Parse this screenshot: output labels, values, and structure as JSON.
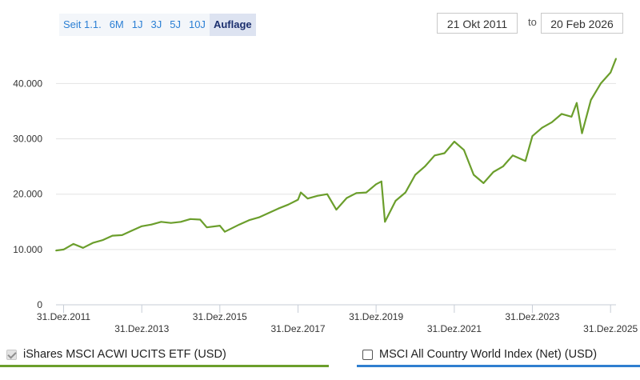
{
  "range_selector": {
    "buttons": [
      "Seit 1.1.",
      "6M",
      "1J",
      "3J",
      "5J",
      "10J",
      "Auflage"
    ],
    "active": "Auflage"
  },
  "date_range": {
    "from": "21 Okt 2011",
    "to_label": "to",
    "to": "20 Feb 2026"
  },
  "legend": {
    "items": [
      {
        "label": "iShares MSCI ACWI UCITS ETF (USD)",
        "checked": true,
        "color": "#6b9e2c"
      },
      {
        "label": "MSCI All Country World Index (Net) (USD)",
        "checked": false,
        "color": "#2f7fd0"
      }
    ]
  },
  "chart_data": {
    "type": "line",
    "ylim": [
      0,
      47000
    ],
    "yticks": [
      0,
      10000,
      20000,
      30000,
      40000
    ],
    "ytick_labels": [
      "0",
      "10.000",
      "20.000",
      "30.000",
      "40.000"
    ],
    "xlim": [
      "2011-10-21",
      "2026-02-20"
    ],
    "xticks": [
      "2011-12-31",
      "2013-12-31",
      "2015-12-31",
      "2017-12-31",
      "2019-12-31",
      "2021-12-31",
      "2023-12-31",
      "2025-12-31"
    ],
    "xtick_labels": [
      "31.Dez.2011",
      "31.Dez.2013",
      "31.Dez.2015",
      "31.Dez.2017",
      "31.Dez.2019",
      "31.Dez.2021",
      "31.Dez.2023",
      "31.Dez.2025"
    ],
    "grid": true,
    "series": [
      {
        "name": "iShares MSCI ACWI UCITS ETF (USD)",
        "color": "#6b9e2c",
        "x": [
          "2011-10-21",
          "2011-12-31",
          "2012-03-31",
          "2012-06-30",
          "2012-09-30",
          "2012-12-31",
          "2013-03-31",
          "2013-06-30",
          "2013-09-30",
          "2013-12-31",
          "2014-03-31",
          "2014-06-30",
          "2014-09-30",
          "2014-12-31",
          "2015-03-31",
          "2015-06-30",
          "2015-08-31",
          "2015-12-31",
          "2016-02-15",
          "2016-06-30",
          "2016-09-30",
          "2016-12-31",
          "2017-03-31",
          "2017-06-30",
          "2017-09-30",
          "2017-12-31",
          "2018-01-26",
          "2018-03-31",
          "2018-06-30",
          "2018-09-30",
          "2018-12-24",
          "2019-03-31",
          "2019-06-30",
          "2019-09-30",
          "2019-12-31",
          "2020-02-19",
          "2020-03-23",
          "2020-06-30",
          "2020-09-30",
          "2020-12-31",
          "2021-03-31",
          "2021-06-30",
          "2021-09-30",
          "2021-12-31",
          "2022-03-31",
          "2022-06-30",
          "2022-09-30",
          "2022-12-31",
          "2023-03-31",
          "2023-06-30",
          "2023-10-27",
          "2023-12-31",
          "2024-03-31",
          "2024-06-30",
          "2024-09-30",
          "2024-12-31",
          "2025-02-18",
          "2025-04-08",
          "2025-06-30",
          "2025-09-30",
          "2025-12-31",
          "2026-02-20"
        ],
        "y": [
          9800,
          10000,
          11000,
          10300,
          11200,
          11700,
          12500,
          12600,
          13400,
          14200,
          14500,
          15000,
          14800,
          15000,
          15500,
          15400,
          14000,
          14300,
          13200,
          14500,
          15300,
          15800,
          16600,
          17400,
          18100,
          19000,
          20300,
          19200,
          19700,
          20000,
          17200,
          19300,
          20200,
          20300,
          21800,
          22300,
          15000,
          18800,
          20300,
          23500,
          25000,
          27000,
          27400,
          29500,
          28000,
          23500,
          22000,
          24000,
          25000,
          27000,
          26000,
          30500,
          32000,
          33000,
          34500,
          34000,
          36500,
          31000,
          37000,
          40000,
          42000,
          44500
        ]
      }
    ]
  }
}
